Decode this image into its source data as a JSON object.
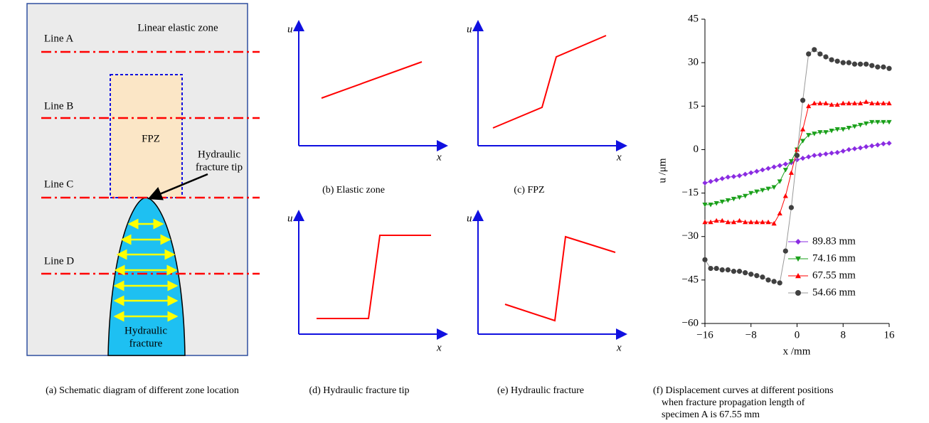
{
  "panel_a": {
    "zone_label": "Linear elastic zone",
    "lines": [
      "Line A",
      "Line B",
      "Line C",
      "Line D"
    ],
    "fpz": "FPZ",
    "tip_label": [
      "Hydraulic",
      "fracture tip"
    ],
    "fracture_label": [
      "Hydraulic",
      "fracture"
    ],
    "caption": "(a) Schematic diagram of different zone location"
  },
  "sketches": [
    {
      "y_label": "u",
      "x_label": "x",
      "caption": "(b) Elastic zone"
    },
    {
      "y_label": "u",
      "x_label": "x",
      "caption": "(c) FPZ"
    },
    {
      "y_label": "u",
      "x_label": "x",
      "caption": "(d) Hydraulic fracture tip"
    },
    {
      "y_label": "u",
      "x_label": "x",
      "caption": "(e) Hydraulic fracture"
    }
  ],
  "chart_data": {
    "type": "line",
    "caption": [
      "(f) Displacement curves at different positions",
      "when fracture propagation length of",
      "specimen A is 67.55 mm"
    ],
    "xlabel": "x /mm",
    "ylabel": "u /μm",
    "x": [
      -16,
      -15,
      -14,
      -13,
      -12,
      -11,
      -10,
      -9,
      -8,
      -7,
      -6,
      -5,
      -4,
      -3,
      -2,
      -1,
      0,
      1,
      2,
      3,
      4,
      5,
      6,
      7,
      8,
      9,
      10,
      11,
      12,
      13,
      14,
      15,
      16
    ],
    "series": [
      {
        "name": "89.83 mm",
        "color": "#8a2be2",
        "marker": "diamond",
        "values": [
          -11.5,
          -11,
          -10.5,
          -10,
          -9.5,
          -9.3,
          -9,
          -8.5,
          -8,
          -7.5,
          -7,
          -6.5,
          -6,
          -5.5,
          -5,
          -4.5,
          -3.5,
          -3,
          -2.5,
          -2,
          -1.8,
          -1.5,
          -1.2,
          -1,
          -0.5,
          0,
          0.3,
          0.6,
          1,
          1.3,
          1.6,
          2,
          2.2
        ]
      },
      {
        "name": "74.16 mm",
        "color": "#1aa01a",
        "marker": "triangle-down",
        "values": [
          -19,
          -19,
          -18.5,
          -18,
          -17.5,
          -17,
          -16.5,
          -16,
          -15,
          -14.5,
          -14,
          -13.5,
          -13,
          -11,
          -7,
          -4,
          0,
          3,
          5,
          5.5,
          6,
          6,
          6.5,
          7,
          7,
          7.5,
          8,
          8.5,
          9,
          9.5,
          9.5,
          9.5,
          9.5
        ]
      },
      {
        "name": "67.55 mm",
        "color": "#ff0000",
        "marker": "triangle-up",
        "values": [
          -25,
          -25,
          -24.5,
          -24.5,
          -25,
          -25,
          -24.5,
          -25,
          -25,
          -25,
          -25,
          -25,
          -25.5,
          -22,
          -16,
          -8,
          0,
          7,
          15,
          16,
          16,
          16,
          15.5,
          15.5,
          16,
          16,
          16,
          16,
          16.5,
          16,
          16,
          16,
          16
        ]
      },
      {
        "name": "54.66 mm",
        "color": "#404040",
        "marker": "circle",
        "values": [
          -38,
          -41,
          -41,
          -41.5,
          -41.5,
          -42,
          -42,
          -42.5,
          -43,
          -43.5,
          -44,
          -45,
          -45.5,
          -46,
          -35,
          -20,
          -2,
          17,
          33,
          34.5,
          33,
          32,
          31,
          30.5,
          30,
          30,
          29.5,
          29.5,
          29.5,
          29,
          28.5,
          28.5,
          28
        ]
      }
    ],
    "xlim": [
      -16,
      16
    ],
    "xticks": [
      {
        "value": -16,
        "label": "−16"
      },
      {
        "value": -8,
        "label": "−8"
      },
      0,
      8,
      16
    ],
    "ylim": [
      -60,
      45
    ],
    "yticks": [
      {
        "value": -60,
        "label": "−60"
      },
      {
        "value": -45,
        "label": "−45"
      },
      {
        "value": -30,
        "label": "−30"
      },
      {
        "value": -15,
        "label": "−15"
      },
      0,
      15,
      30,
      45
    ],
    "legend": "lower right"
  }
}
